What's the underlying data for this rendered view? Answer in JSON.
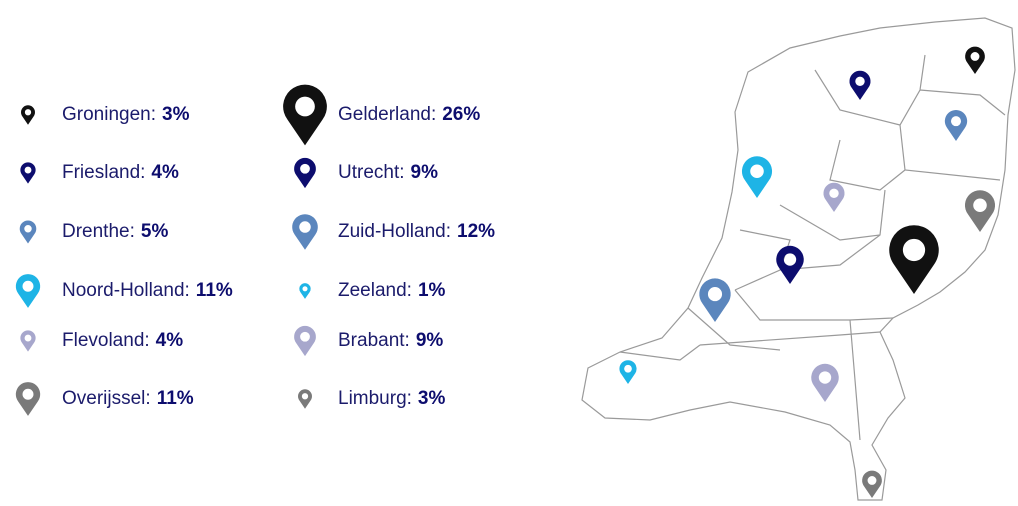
{
  "provinces": [
    {
      "name": "Groningen:",
      "value": 3,
      "value_label": "3%",
      "color": "#111111"
    },
    {
      "name": "Friesland:",
      "value": 4,
      "value_label": "4%",
      "color": "#0d0d6e"
    },
    {
      "name": "Drenthe:",
      "value": 5,
      "value_label": "5%",
      "color": "#5b86bd"
    },
    {
      "name": "Noord-Holland:",
      "value": 11,
      "value_label": "11%",
      "color": "#1eb4e6"
    },
    {
      "name": "Flevoland:",
      "value": 4,
      "value_label": "4%",
      "color": "#a7a7cc"
    },
    {
      "name": "Overijssel:",
      "value": 11,
      "value_label": "11%",
      "color": "#7a7a7a"
    },
    {
      "name": "Gelderland:",
      "value": 26,
      "value_label": "26%",
      "color": "#111111"
    },
    {
      "name": "Utrecht:",
      "value": 9,
      "value_label": "9%",
      "color": "#0d0d6e"
    },
    {
      "name": "Zuid-Holland:",
      "value": 12,
      "value_label": "12%",
      "color": "#5b86bd"
    },
    {
      "name": "Zeeland:",
      "value": 1,
      "value_label": "1%",
      "color": "#1eb4e6"
    },
    {
      "name": "Brabant:",
      "value": 9,
      "value_label": "9%",
      "color": "#a7a7cc"
    },
    {
      "name": "Limburg:",
      "value": 3,
      "value_label": "3%",
      "color": "#7a7a7a"
    }
  ]
}
